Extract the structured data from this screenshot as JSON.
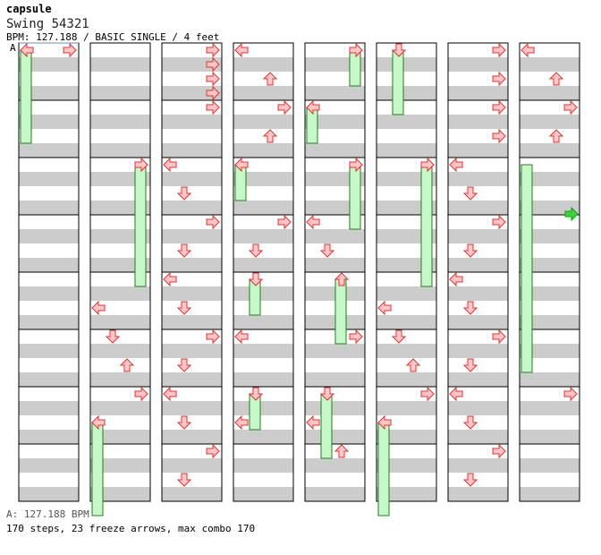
{
  "header": {
    "artist": "capsule",
    "song": "Swing 54321",
    "info": "BPM: 127.188 / BASIC SINGLE / 4 feet",
    "marker": "A"
  },
  "footer": {
    "bpm_line": "A: 127.188 BPM",
    "stats": "170 steps, 23 freeze arrows, max combo 170"
  },
  "colors": {
    "stripe": "#cccccc",
    "arrow_fill": "#ffc8c8",
    "arrow_stroke": "#e03030",
    "freeze_fill": "#c8f8c8",
    "freeze_stroke": "#208020",
    "bpm_marker": "#00aa00"
  },
  "chart": {
    "lanes": [
      "left",
      "down",
      "up",
      "right"
    ],
    "beats_per_column": 16,
    "columns": [
      {
        "notes": [
          [
            "left",
            0
          ],
          [
            "right",
            0
          ]
        ],
        "freezes": [
          [
            "left",
            0,
            3.5
          ]
        ]
      },
      {
        "notes": [
          [
            "right",
            4
          ],
          [
            "left",
            9
          ],
          [
            "down",
            10
          ],
          [
            "up",
            11
          ],
          [
            "right",
            12
          ],
          [
            "left",
            13
          ]
        ],
        "freezes": [
          [
            "right",
            4,
            4.5
          ],
          [
            "left",
            13,
            3.5
          ]
        ]
      },
      {
        "notes": [
          [
            "right",
            0
          ],
          [
            "right",
            0.5
          ],
          [
            "right",
            1
          ],
          [
            "right",
            1.5
          ],
          [
            "right",
            2
          ],
          [
            "left",
            4
          ],
          [
            "down",
            5
          ],
          [
            "right",
            6
          ],
          [
            "down",
            7
          ],
          [
            "left",
            8
          ],
          [
            "down",
            9
          ],
          [
            "right",
            10
          ],
          [
            "down",
            11
          ],
          [
            "left",
            12
          ],
          [
            "down",
            13
          ],
          [
            "right",
            14
          ],
          [
            "down",
            15
          ]
        ],
        "freezes": []
      },
      {
        "notes": [
          [
            "left",
            0
          ],
          [
            "up",
            1
          ],
          [
            "right",
            2
          ],
          [
            "up",
            3
          ],
          [
            "left",
            4
          ],
          [
            "right",
            6
          ],
          [
            "down",
            7
          ],
          [
            "down",
            8
          ],
          [
            "left",
            10
          ],
          [
            "down",
            12
          ],
          [
            "left",
            13
          ]
        ],
        "freezes": [
          [
            "left",
            4,
            1.5
          ],
          [
            "down",
            8,
            1.5
          ],
          [
            "down",
            12,
            1.5
          ]
        ]
      },
      {
        "notes": [
          [
            "right",
            0
          ],
          [
            "left",
            2
          ],
          [
            "right",
            4
          ],
          [
            "left",
            6
          ],
          [
            "down",
            7
          ],
          [
            "up",
            8
          ],
          [
            "right",
            10
          ],
          [
            "down",
            12
          ],
          [
            "left",
            13
          ],
          [
            "up",
            14
          ]
        ],
        "freezes": [
          [
            "right",
            0,
            1.5
          ],
          [
            "left",
            2,
            1.5
          ],
          [
            "right",
            4,
            2.5
          ],
          [
            "up",
            8,
            2.5
          ],
          [
            "down",
            12,
            2.5
          ]
        ]
      },
      {
        "notes": [
          [
            "down",
            0
          ],
          [
            "right",
            4
          ],
          [
            "left",
            9
          ],
          [
            "down",
            10
          ],
          [
            "up",
            11
          ],
          [
            "right",
            12
          ],
          [
            "left",
            13
          ]
        ],
        "freezes": [
          [
            "down",
            0,
            2.5
          ],
          [
            "right",
            4,
            4.5
          ],
          [
            "left",
            13,
            3.5
          ]
        ]
      },
      {
        "notes": [
          [
            "right",
            0
          ],
          [
            "right",
            1
          ],
          [
            "right",
            2
          ],
          [
            "right",
            3
          ],
          [
            "left",
            4
          ],
          [
            "down",
            5
          ],
          [
            "right",
            6
          ],
          [
            "down",
            7
          ],
          [
            "left",
            8
          ],
          [
            "down",
            9
          ],
          [
            "right",
            10
          ],
          [
            "down",
            11
          ],
          [
            "left",
            12
          ],
          [
            "down",
            13
          ],
          [
            "right",
            14
          ],
          [
            "down",
            15
          ]
        ],
        "freezes": []
      },
      {
        "notes": [
          [
            "left",
            0
          ],
          [
            "up",
            1
          ],
          [
            "right",
            2
          ],
          [
            "up",
            3
          ],
          [
            "right",
            12
          ]
        ],
        "freezes": [
          [
            "left",
            4,
            7.5
          ]
        ]
      }
    ],
    "column2_rows": [
      {
        "notes": [
          [
            "left",
            0
          ],
          [
            "right",
            4
          ]
        ],
        "freezes": []
      }
    ]
  }
}
